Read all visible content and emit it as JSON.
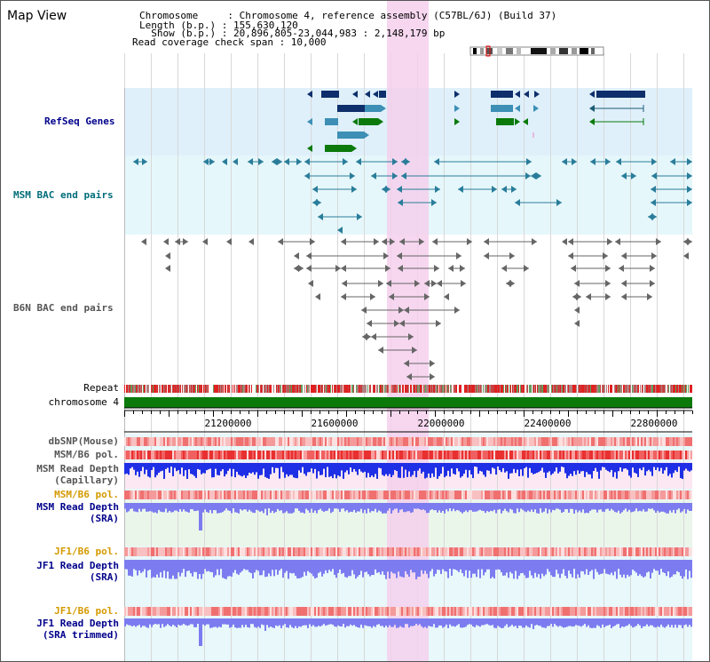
{
  "view_title": "Map View",
  "info": {
    "chromosome_line": "Chromosome     : Chromosome 4, reference assembly (C57BL/6J) (Build 37)",
    "length_line": "Length (b.p.) : 155,630,120",
    "show_line": "  Show (b.p.) : 20,896,805-23,044,983 : 2,148,179 bp",
    "coverage_line": "Read coverage check span : 10,000"
  },
  "tracks": {
    "refseq": "RefSeq Genes",
    "msm_bac": "MSM BAC end pairs",
    "b6n_bac": "B6N BAC end pairs",
    "repeat": "Repeat",
    "chromosome": "chromosome 4",
    "dbsnp": "dbSNP(Mouse)",
    "msm_b6_pol": "MSM/B6 pol.",
    "msm_read_depth_cap_1": "MSM Read Depth",
    "msm_read_depth_cap_2": "(Capillary)",
    "msm_b6_pol_sra": "MSM/B6 pol.",
    "msm_read_depth_sra_1": "MSM Read Depth",
    "msm_read_depth_sra_2": "(SRA)",
    "jf1_b6_pol": "JF1/B6 pol.",
    "jf1_read_depth_1": "JF1 Read Depth",
    "jf1_read_depth_2": "(SRA)",
    "jf1_b6_pol_2": "JF1/B6 pol.",
    "jf1_read_depth_trim_1": "JF1 Read Depth",
    "jf1_read_depth_trim_2": "(SRA trimmed)"
  },
  "ruler": {
    "ticks": [
      "21200000",
      "21600000",
      "22000000",
      "22400000",
      "22800000"
    ]
  },
  "colors": {
    "refseq_bg": "#dff0fb",
    "msm_bg": "#e5f7fb",
    "highlight": "#f5d0ec",
    "gene_navy": "#0e2f6b",
    "gene_teal": "#3d8fb5",
    "gene_green": "#0b7a0b",
    "label_navy": "#00008b",
    "label_teal": "#006d7a",
    "label_gray": "#555555",
    "label_orange": "#d49a00",
    "depth_blue": "#1e2fe6",
    "depth_lilac": "#7c7cf0"
  }
}
